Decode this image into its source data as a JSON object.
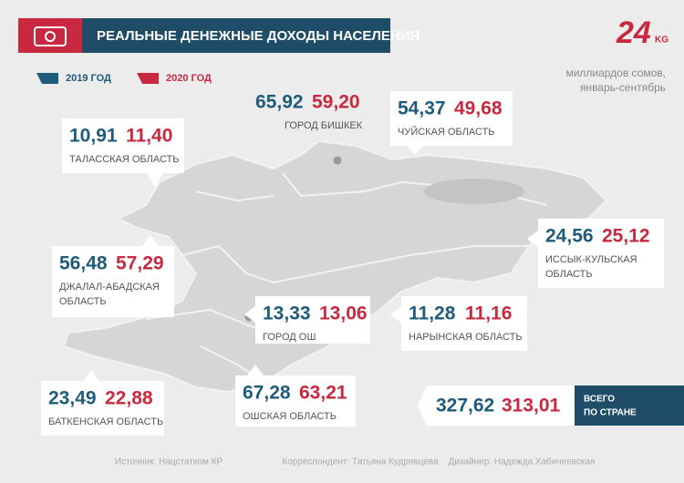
{
  "header": {
    "title": "РЕАЛЬНЫЕ ДЕНЕЖНЫЕ ДОХОДЫ НАСЕЛЕНИЯ",
    "logo": "24",
    "logo_suffix": "KG"
  },
  "legend": {
    "y2019": "2019 ГОД",
    "y2020": "2020 ГОД"
  },
  "unit": [
    "миллиардов сомов,",
    "январь-сентябрь"
  ],
  "regions": [
    {
      "name": [
        "ГОРОД БИШКЕК"
      ],
      "v2019": "65,92",
      "v2020": "59,20"
    },
    {
      "name": [
        "ЧУЙСКАЯ ОБЛАСТЬ"
      ],
      "v2019": "54,37",
      "v2020": "49,68"
    },
    {
      "name": [
        "ТАЛАССКАЯ ОБЛАСТЬ"
      ],
      "v2019": "10,91",
      "v2020": "11,40"
    },
    {
      "name": [
        "ИССЫК-КУЛЬСКАЯ",
        "ОБЛАСТЬ"
      ],
      "v2019": "24,56",
      "v2020": "25,12"
    },
    {
      "name": [
        "ДЖАЛАЛ-АБАДСКАЯ",
        "ОБЛАСТЬ"
      ],
      "v2019": "56,48",
      "v2020": "57,29"
    },
    {
      "name": [
        "ГОРОД ОШ"
      ],
      "v2019": "13,33",
      "v2020": "13,06"
    },
    {
      "name": [
        "НАРЫНСКАЯ ОБЛАСТЬ"
      ],
      "v2019": "11,28",
      "v2020": "11,16"
    },
    {
      "name": [
        "БАТКЕНСКАЯ ОБЛАСТЬ"
      ],
      "v2019": "23,49",
      "v2020": "22,88"
    },
    {
      "name": [
        "ОШСКАЯ ОБЛАСТЬ"
      ],
      "v2019": "67,28",
      "v2020": "63,21"
    }
  ],
  "total": {
    "label": [
      "ВСЕГО",
      "ПО СТРАНЕ"
    ],
    "v2019": "327,62",
    "v2020": "313,01"
  },
  "footer": [
    "Источник: Нацстатком КР",
    "Корреспондент: Татьяна Кудрявцева",
    "Дизайнер: Надежда Хабичеевская"
  ]
}
